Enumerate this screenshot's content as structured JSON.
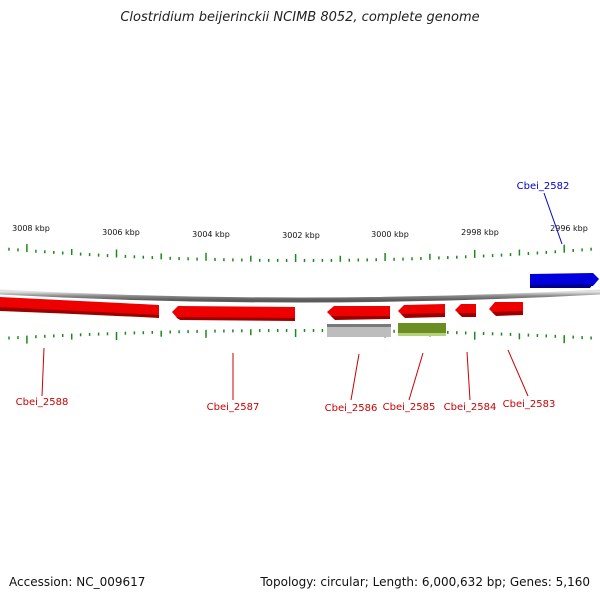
{
  "title": "Clostridium beijerinckii NCIMB 8052, complete genome",
  "accession_label": "Accession: NC_009617",
  "summary": "Topology: circular; Length: 6,000,632 bp; Genes: 5,160",
  "ruler_labels": [
    "3008 kbp",
    "3006 kbp",
    "3004 kbp",
    "3002 kbp",
    "3000 kbp",
    "2998 kbp",
    "2996 kbp"
  ],
  "colors": {
    "forward_gene": "#0000dd",
    "reverse_gene": "#ee0000",
    "rna_gray": "#b8b8b8",
    "rna_olive": "#6b8e23",
    "tick": "#1a8a1a",
    "backbone": "#8c8c8c",
    "label_forward": "#0000cc",
    "label_reverse": "#cc0000"
  },
  "genes": [
    {
      "name": "Cbei_2588",
      "strand": "reverse"
    },
    {
      "name": "Cbei_2587",
      "strand": "reverse"
    },
    {
      "name": "Cbei_2586",
      "strand": "reverse"
    },
    {
      "name": "Cbei_2585",
      "strand": "reverse"
    },
    {
      "name": "Cbei_2584",
      "strand": "reverse"
    },
    {
      "name": "Cbei_2583",
      "strand": "reverse"
    },
    {
      "name": "Cbei_2582",
      "strand": "forward"
    }
  ]
}
